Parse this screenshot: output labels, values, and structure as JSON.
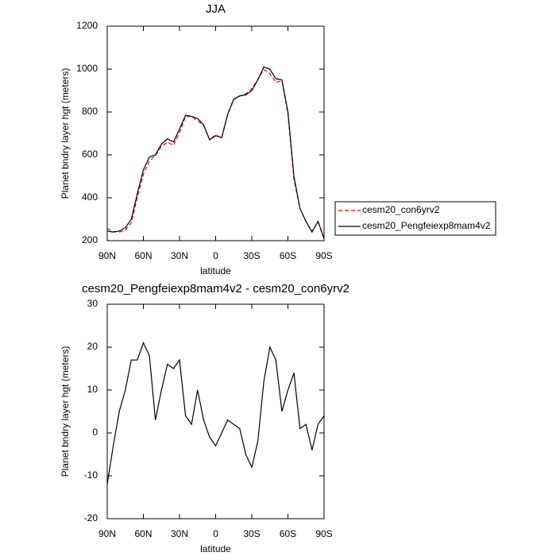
{
  "chart_data": [
    {
      "type": "line",
      "title": "JJA",
      "x_label": "latitude",
      "y_label": "Planet bndry layer hgt (meters)",
      "x": [
        90,
        85,
        80,
        75,
        70,
        65,
        60,
        55,
        50,
        45,
        40,
        35,
        30,
        25,
        20,
        15,
        10,
        5,
        0,
        -5,
        -10,
        -15,
        -20,
        -25,
        -30,
        -35,
        -40,
        -45,
        -50,
        -55,
        -60,
        -65,
        -70,
        -75,
        -80,
        -85,
        -90
      ],
      "xlim": [
        90,
        -90
      ],
      "xticks": [
        {
          "value": 90,
          "label": "90N"
        },
        {
          "value": 60,
          "label": "60N"
        },
        {
          "value": 30,
          "label": "30N"
        },
        0,
        {
          "value": -30,
          "label": "30S"
        },
        {
          "value": -60,
          "label": "60S"
        },
        {
          "value": -90,
          "label": "90S"
        }
      ],
      "ylim": [
        200,
        1200
      ],
      "yticks": [
        200,
        400,
        600,
        800,
        1000,
        1200
      ],
      "legend": "right",
      "series": [
        {
          "name": "cesm20_con6yrv2",
          "color": "#ff0000",
          "dashed": true,
          "values": [
            257,
            243,
            240,
            250,
            283,
            403,
            509,
            572,
            597,
            640,
            659,
            645,
            703,
            781,
            778,
            760,
            737,
            671,
            693,
            680,
            787,
            858,
            874,
            885,
            908,
            952,
            998,
            980,
            938,
            945,
            790,
            486,
            349,
            288,
            244,
            288,
            206
          ]
        },
        {
          "name": "cesm20_Pengfeiexp8mam4v2",
          "color": "#000000",
          "dashed": false,
          "values": [
            245,
            240,
            245,
            260,
            300,
            420,
            530,
            590,
            600,
            650,
            675,
            660,
            720,
            785,
            780,
            770,
            740,
            670,
            690,
            680,
            790,
            860,
            875,
            880,
            900,
            950,
            1010,
            1000,
            955,
            950,
            800,
            500,
            350,
            290,
            240,
            290,
            210
          ]
        }
      ]
    },
    {
      "type": "line",
      "title": "cesm20_Pengfeiexp8mam4v2 - cesm20_con6yrv2",
      "x_label": "latitude",
      "y_label": "Planet bndry layer hgt (meters)",
      "x": [
        90,
        85,
        80,
        75,
        70,
        65,
        60,
        55,
        50,
        45,
        40,
        35,
        30,
        25,
        20,
        15,
        10,
        5,
        0,
        -5,
        -10,
        -15,
        -20,
        -25,
        -30,
        -35,
        -40,
        -45,
        -50,
        -55,
        -60,
        -65,
        -70,
        -75,
        -80,
        -85,
        -90
      ],
      "xlim": [
        90,
        -90
      ],
      "xticks": [
        {
          "value": 90,
          "label": "90N"
        },
        {
          "value": 60,
          "label": "60N"
        },
        {
          "value": 30,
          "label": "30N"
        },
        0,
        {
          "value": -30,
          "label": "30S"
        },
        {
          "value": -60,
          "label": "60S"
        },
        {
          "value": -90,
          "label": "90S"
        }
      ],
      "ylim": [
        -20,
        30
      ],
      "yticks": [
        -20,
        -10,
        0,
        10,
        20,
        30
      ],
      "series": [
        {
          "color": "#000000",
          "dashed": false,
          "values": [
            -12,
            -3,
            5,
            10,
            17,
            17,
            21,
            18,
            3,
            10,
            16,
            15,
            17,
            4,
            2,
            10,
            3,
            -1,
            -3,
            0,
            3,
            2,
            1,
            -5,
            -8,
            -2,
            12,
            20,
            17,
            5,
            10,
            14,
            1,
            2,
            -4,
            2,
            4
          ]
        }
      ]
    }
  ]
}
